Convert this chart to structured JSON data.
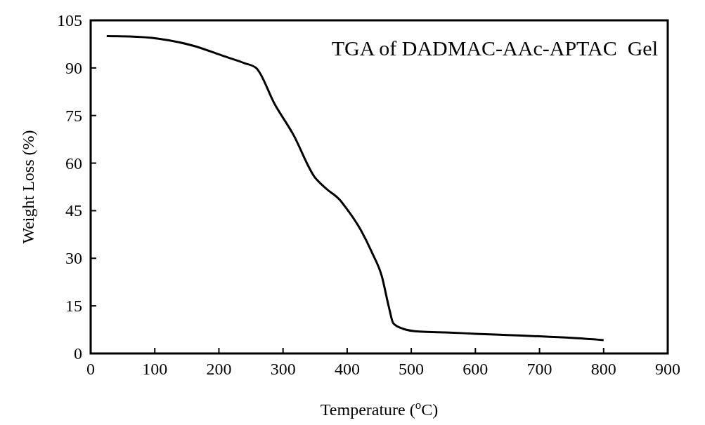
{
  "chart_data": {
    "type": "line",
    "annotations": [
      "TGA of DADMAC-AAc-APTAC  Gel"
    ],
    "xlabel": "Temperature ($^{o}$C)",
    "ylabel": "Weight Loss (%)",
    "x": [
      25,
      60,
      106,
      160,
      208,
      240,
      258,
      287,
      316,
      349,
      367,
      389,
      396,
      421,
      439,
      454,
      465,
      472,
      487,
      513,
      560,
      600,
      650,
      700,
      750,
      800
    ],
    "series": [
      {
        "color": "#000000",
        "values": [
          100,
          99.9,
          99.2,
          97,
          93.7,
          91.5,
          90,
          78.6,
          69,
          55.7,
          52,
          48.3,
          46.5,
          39,
          31.7,
          24.4,
          14.7,
          9.5,
          7.8,
          6.9,
          6.6,
          6.2,
          5.8,
          5.4,
          4.9,
          4.2
        ]
      }
    ],
    "xlim": [
      0,
      900
    ],
    "xticks": [
      0,
      100,
      200,
      300,
      400,
      500,
      600,
      700,
      800,
      900
    ],
    "ylim": [
      0,
      105
    ],
    "yticks": [
      0,
      15,
      30,
      45,
      60,
      75,
      90,
      105
    ],
    "grid": false,
    "marker": "none",
    "line_style": "solid"
  }
}
